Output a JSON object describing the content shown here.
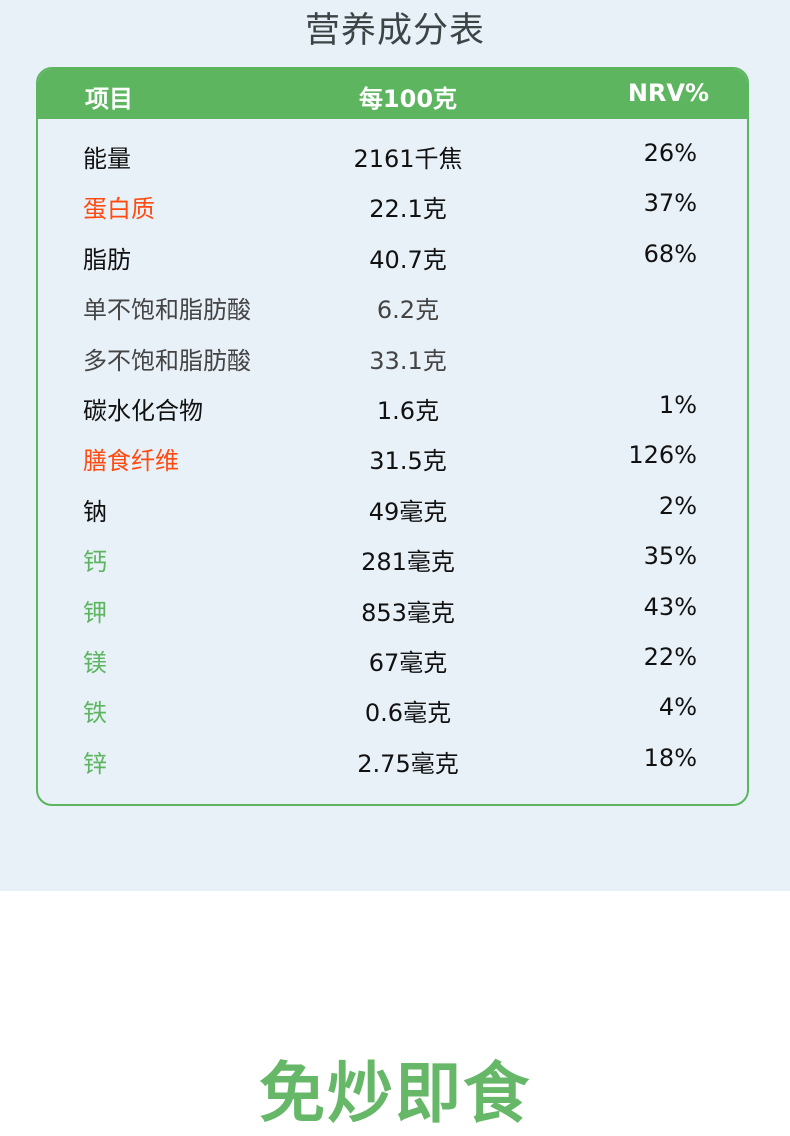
{
  "title": "营养成分表",
  "header": {
    "item": "项目",
    "per100": "每100克",
    "nrv": "NRV%"
  },
  "colors": {
    "green": "#5db55f",
    "orange": "#ff4a10",
    "background": "#e8f1f8"
  },
  "rows": [
    {
      "name": "能量",
      "value": "2161千焦",
      "nrv": "26%",
      "color": "#111111"
    },
    {
      "name": "蛋白质",
      "value": "22.1克",
      "nrv": "37%",
      "color": "#ff4a10"
    },
    {
      "name": "脂肪",
      "value": "40.7克",
      "nrv": "68%",
      "color": "#111111"
    },
    {
      "name": "单不饱和脂肪酸",
      "value": "6.2克",
      "nrv": "",
      "color": "#444444",
      "sub": true
    },
    {
      "name": "多不饱和脂肪酸",
      "value": "33.1克",
      "nrv": "",
      "color": "#444444",
      "sub": true
    },
    {
      "name": "碳水化合物",
      "value": "1.6克",
      "nrv": "1%",
      "color": "#111111"
    },
    {
      "name": "膳食纤维",
      "value": "31.5克",
      "nrv": "126%",
      "color": "#ff4a10"
    },
    {
      "name": "钠",
      "value": "49毫克",
      "nrv": "2%",
      "color": "#111111"
    },
    {
      "name": "钙",
      "value": "281毫克",
      "nrv": "35%",
      "color": "#5db55f"
    },
    {
      "name": "钾",
      "value": "853毫克",
      "nrv": "43%",
      "color": "#5db55f"
    },
    {
      "name": "镁",
      "value": "67毫克",
      "nrv": "22%",
      "color": "#5db55f"
    },
    {
      "name": "铁",
      "value": "0.6毫克",
      "nrv": "4%",
      "color": "#5db55f"
    },
    {
      "name": "锌",
      "value": "2.75毫克",
      "nrv": "18%",
      "color": "#5db55f"
    }
  ],
  "bottom_title": "免炒即食"
}
